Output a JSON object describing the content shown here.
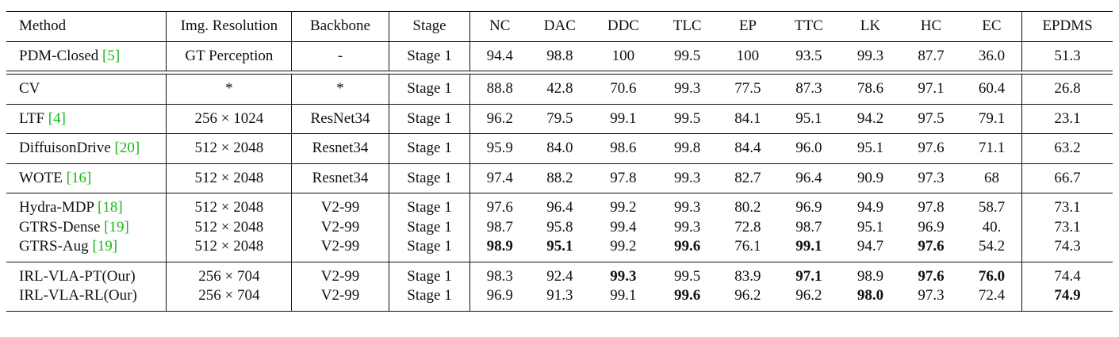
{
  "columns": [
    "Method",
    "Img. Resolution",
    "Backbone",
    "Stage",
    "NC",
    "DAC",
    "DDC",
    "TLC",
    "EP",
    "TTC",
    "LK",
    "HC",
    "EC",
    "EPDMS"
  ],
  "groups": [
    [
      {
        "method": "PDM-Closed ",
        "cite": "[5]",
        "cells": [
          "GT Perception",
          "-",
          "Stage 1",
          "94.4",
          "98.8",
          "100",
          "99.5",
          "100",
          "93.5",
          "99.3",
          "87.7",
          "36.0",
          "51.3"
        ],
        "bold": []
      }
    ],
    "double",
    [
      {
        "method": "CV",
        "cite": "",
        "cells": [
          "*",
          "*",
          "Stage 1",
          "88.8",
          "42.8",
          "70.6",
          "99.3",
          "77.5",
          "87.3",
          "78.6",
          "97.1",
          "60.4",
          "26.8"
        ],
        "bold": []
      }
    ],
    [
      {
        "method": "LTF ",
        "cite": "[4]",
        "cells": [
          "256 × 1024",
          "ResNet34",
          "Stage 1",
          "96.2",
          "79.5",
          "99.1",
          "99.5",
          "84.1",
          "95.1",
          "94.2",
          "97.5",
          "79.1",
          "23.1"
        ],
        "bold": []
      }
    ],
    [
      {
        "method": "DiffuisonDrive ",
        "cite": "[20]",
        "cells": [
          "512 × 2048",
          "Resnet34",
          "Stage 1",
          "95.9",
          "84.0",
          "98.6",
          "99.8",
          "84.4",
          "96.0",
          "95.1",
          "97.6",
          "71.1",
          "63.2"
        ],
        "bold": []
      }
    ],
    [
      {
        "method": "WOTE ",
        "cite": "[16]",
        "cells": [
          "512 × 2048",
          "Resnet34",
          "Stage 1",
          "97.4",
          "88.2",
          "97.8",
          "99.3",
          "82.7",
          "96.4",
          "90.9",
          "97.3",
          "68",
          "66.7"
        ],
        "bold": []
      }
    ],
    [
      {
        "method": "Hydra-MDP ",
        "cite": "[18]",
        "cells": [
          "512 × 2048",
          "V2-99",
          "Stage 1",
          "97.6",
          "96.4",
          "99.2",
          "99.3",
          "80.2",
          "96.9",
          "94.9",
          "97.8",
          "58.7",
          "73.1"
        ],
        "bold": []
      },
      {
        "method": "GTRS-Dense ",
        "cite": "[19]",
        "cells": [
          "512 × 2048",
          "V2-99",
          "Stage 1",
          "98.7",
          "95.8",
          "99.4",
          "99.3",
          "72.8",
          "98.7",
          "95.1",
          "96.9",
          "40.",
          "73.1"
        ],
        "bold": []
      },
      {
        "method": "GTRS-Aug ",
        "cite": "[19]",
        "cells": [
          "512 × 2048",
          "V2-99",
          "Stage 1",
          "98.9",
          "95.1",
          "99.2",
          "99.6",
          "76.1",
          "99.1",
          "94.7",
          "97.6",
          "54.2",
          "74.3"
        ],
        "bold": [
          3,
          4,
          6,
          8,
          10
        ]
      }
    ],
    [
      {
        "method": "IRL-VLA-PT(Our)",
        "cite": "",
        "cells": [
          "256 × 704",
          "V2-99",
          "Stage 1",
          "98.3",
          "92.4",
          "99.3",
          "99.5",
          "83.9",
          "97.1",
          "98.9",
          "97.6",
          "76.0",
          "74.4"
        ],
        "bold": [
          5,
          8,
          10,
          11
        ]
      },
      {
        "method": "IRL-VLA-RL(Our)",
        "cite": "",
        "cells": [
          "256 × 704",
          "V2-99",
          "Stage 1",
          "96.9",
          "91.3",
          "99.1",
          "99.6",
          "96.2",
          "96.2",
          "98.0",
          "97.3",
          "72.4",
          "74.9"
        ],
        "bold": [
          6,
          9,
          12
        ]
      }
    ]
  ]
}
